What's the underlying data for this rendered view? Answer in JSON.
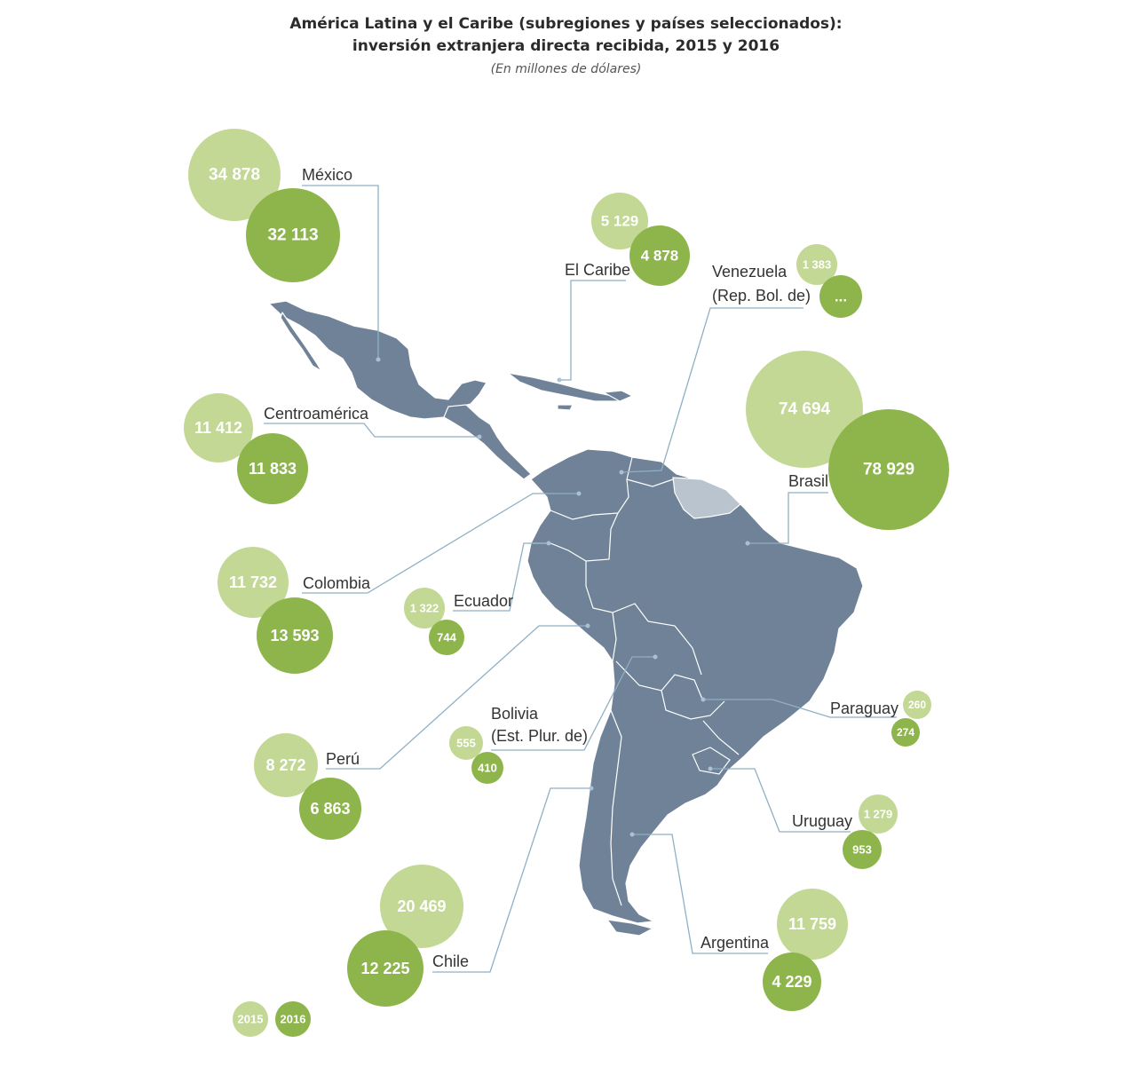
{
  "title_line1": "América Latina y el Caribe (subregiones y países seleccionados):",
  "title_line2": "inversión extranjera directa recibida, 2015 y 2016",
  "subtitle": "(En millones de dólares)",
  "colors": {
    "y2015": "#c2d894",
    "y2016": "#8db54b",
    "land": "#6f8297",
    "guianas": "#b9c4cf",
    "leader": "#8fb0c4"
  },
  "legend": {
    "y2015": "2015",
    "y2016": "2016"
  },
  "chart_data": {
    "type": "map-bubble",
    "series": [
      "2015",
      "2016"
    ],
    "regions": [
      {
        "id": "mexico",
        "name": "México",
        "v2015": "34 878",
        "v2016": "32 113"
      },
      {
        "id": "caribe",
        "name": "El Caribe",
        "v2015": "5 129",
        "v2016": "4 878"
      },
      {
        "id": "venezuela",
        "name": "Venezuela (Rep. Bol. de)",
        "name_line1": "Venezuela",
        "name_line2": "(Rep. Bol. de)",
        "v2015": "1 383",
        "v2016": "..."
      },
      {
        "id": "centroamerica",
        "name": "Centroamérica",
        "v2015": "11 412",
        "v2016": "11 833"
      },
      {
        "id": "brasil",
        "name": "Brasil",
        "v2015": "74 694",
        "v2016": "78 929"
      },
      {
        "id": "colombia",
        "name": "Colombia",
        "v2015": "11 732",
        "v2016": "13 593"
      },
      {
        "id": "ecuador",
        "name": "Ecuador",
        "v2015": "1 322",
        "v2016": "744"
      },
      {
        "id": "bolivia",
        "name": "Bolivia (Est. Plur. de)",
        "name_line1": "Bolivia",
        "name_line2": "(Est. Plur. de)",
        "v2015": "555",
        "v2016": "410"
      },
      {
        "id": "paraguay",
        "name": "Paraguay",
        "v2015": "260",
        "v2016": "274"
      },
      {
        "id": "peru",
        "name": "Perú",
        "v2015": "8 272",
        "v2016": "6 863"
      },
      {
        "id": "uruguay",
        "name": "Uruguay",
        "v2015": "1 279",
        "v2016": "953"
      },
      {
        "id": "chile",
        "name": "Chile",
        "v2015": "20 469",
        "v2016": "12 225"
      },
      {
        "id": "argentina",
        "name": "Argentina",
        "v2015": "11 759",
        "v2016": "4 229"
      }
    ]
  }
}
